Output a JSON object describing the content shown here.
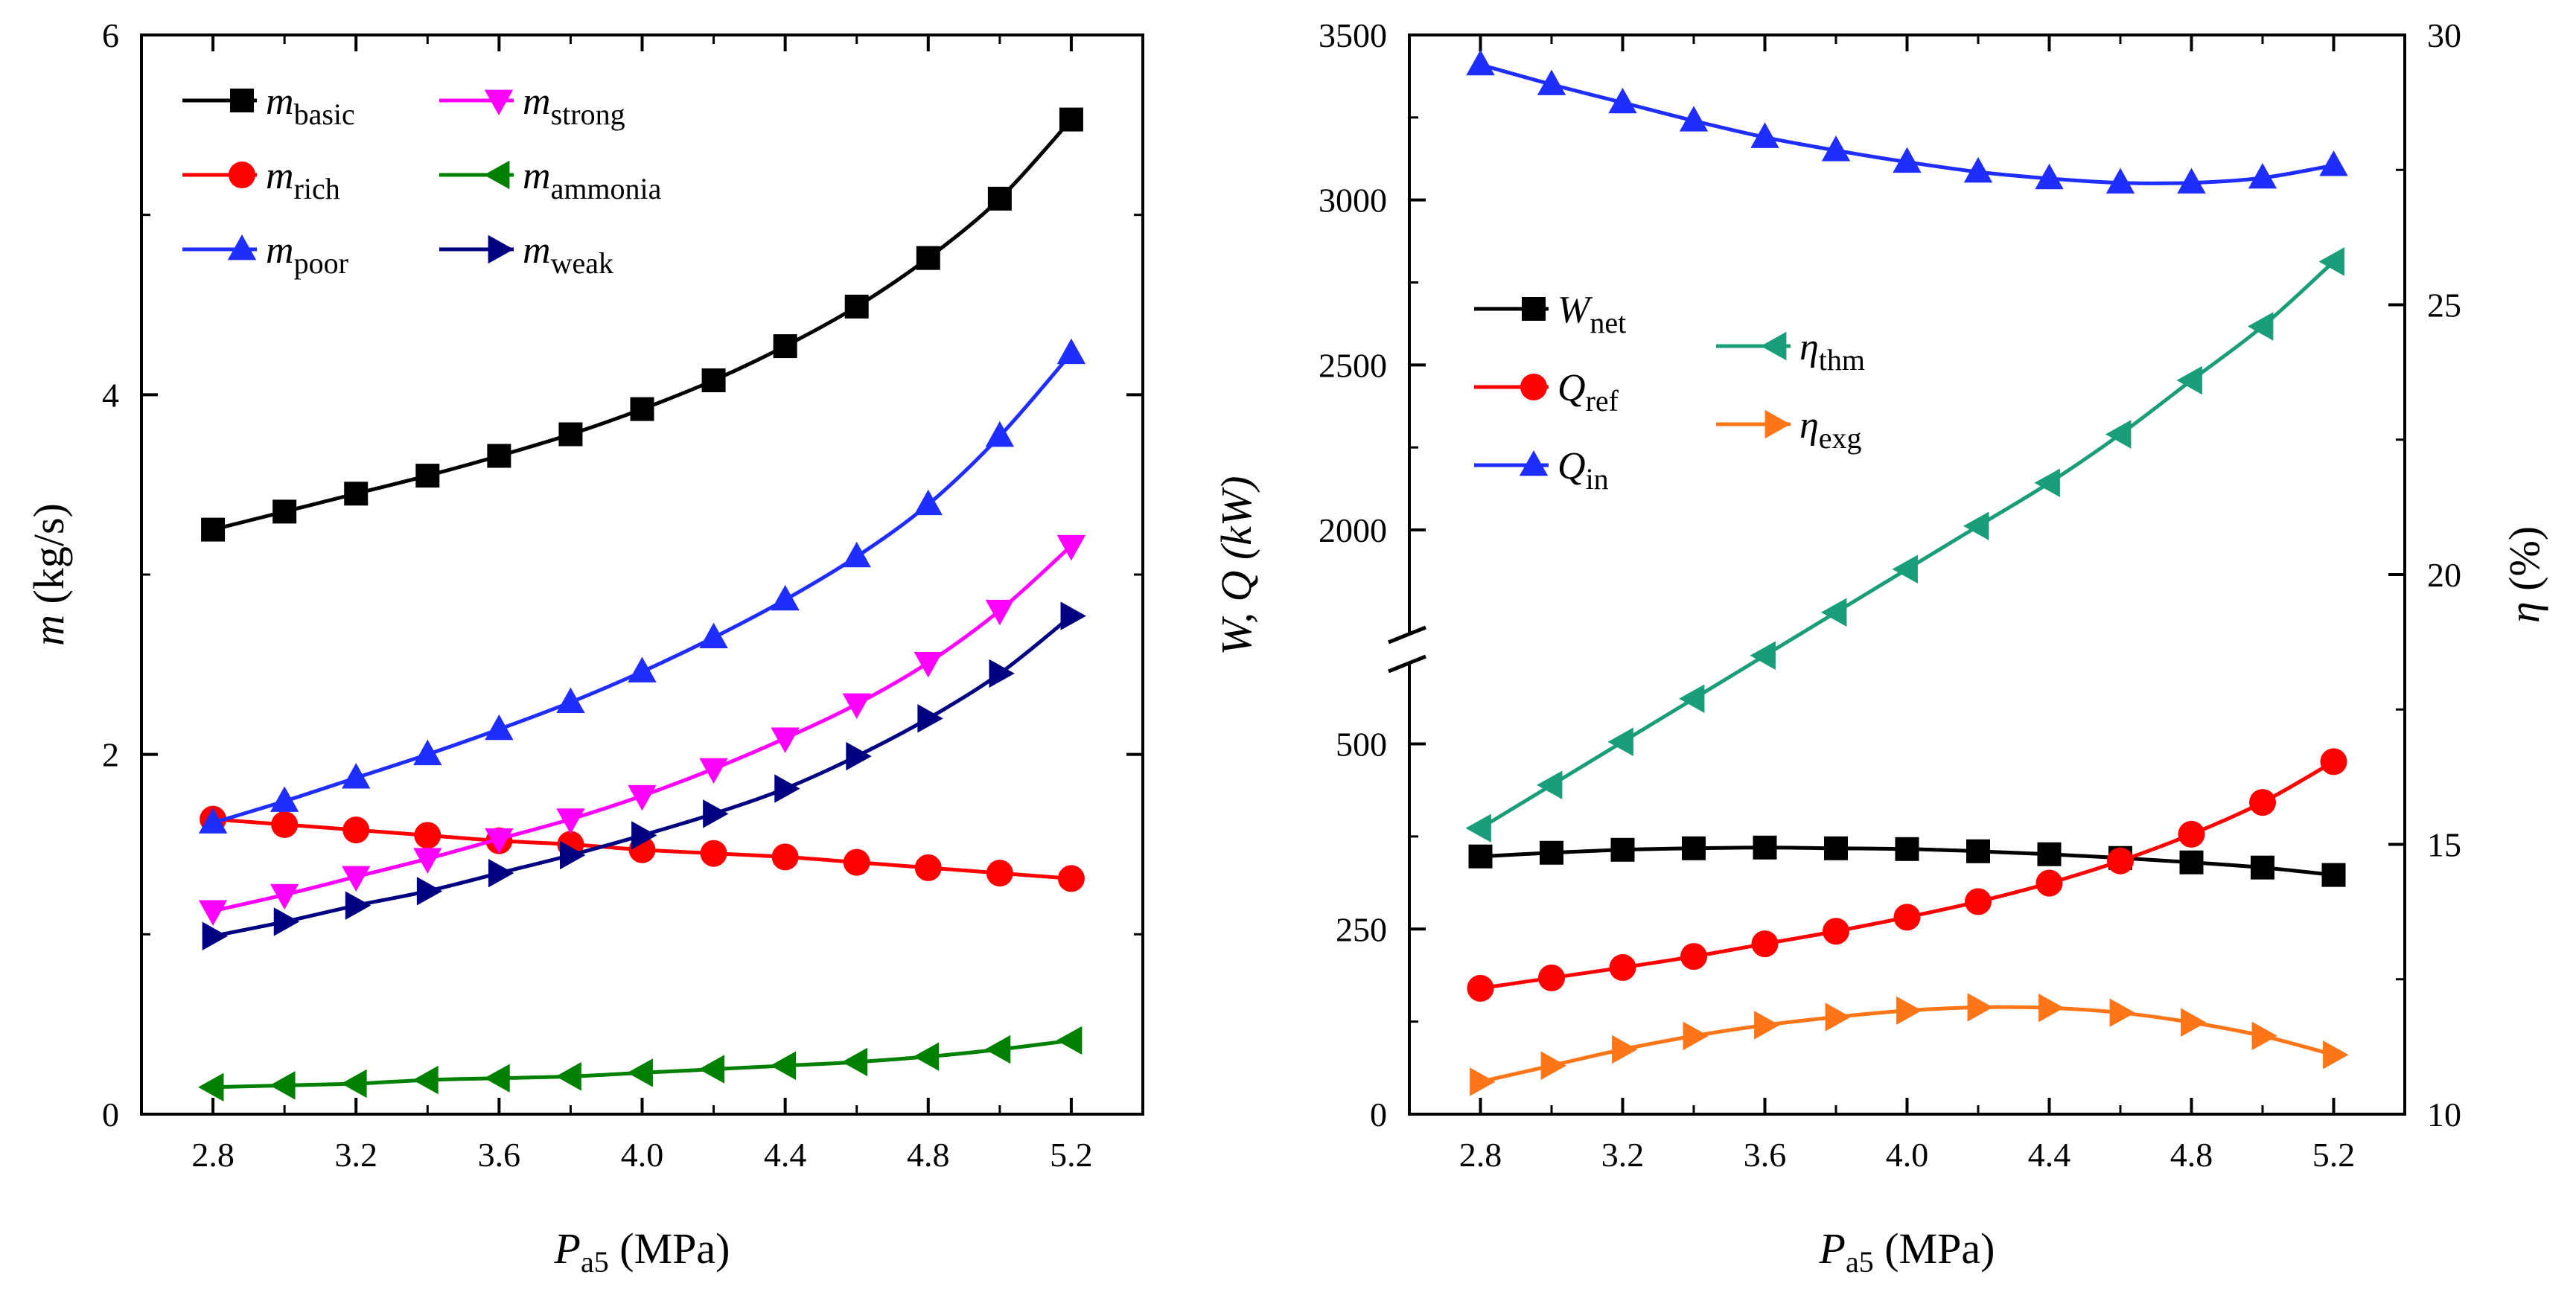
{
  "chart_data": [
    {
      "type": "line",
      "panel": "left",
      "xlabel": {
        "main": "P",
        "sub": "a5",
        "unit": " (MPa)"
      },
      "ylabel": {
        "main": "m",
        "unit": " (kg/s)"
      },
      "xlim": [
        2.6,
        5.4
      ],
      "ylim": [
        0,
        6
      ],
      "xticks": [
        "2.8",
        "3.2",
        "3.6",
        "4.0",
        "4.4",
        "4.8",
        "5.2"
      ],
      "yticks": [
        "0",
        "2",
        "4",
        "6"
      ],
      "x": [
        2.8,
        3.0,
        3.2,
        3.4,
        3.6,
        3.8,
        4.0,
        4.2,
        4.4,
        4.6,
        4.8,
        5.0,
        5.2
      ],
      "legend_position": "top-left",
      "series": [
        {
          "name": "m",
          "sub": "basic",
          "color": "#000000",
          "marker": "square",
          "values": [
            3.25,
            3.35,
            3.45,
            3.55,
            3.66,
            3.78,
            3.92,
            4.08,
            4.27,
            4.49,
            4.76,
            5.09,
            5.53
          ]
        },
        {
          "name": "m",
          "sub": "rich",
          "color": "#ff0000",
          "marker": "circle",
          "values": [
            1.64,
            1.61,
            1.58,
            1.55,
            1.52,
            1.5,
            1.47,
            1.45,
            1.43,
            1.4,
            1.37,
            1.34,
            1.31
          ]
        },
        {
          "name": "m",
          "sub": "poor",
          "color": "#1f2eff",
          "marker": "triangle-up",
          "values": [
            1.62,
            1.74,
            1.87,
            2.0,
            2.14,
            2.29,
            2.46,
            2.65,
            2.86,
            3.1,
            3.39,
            3.77,
            4.23
          ]
        },
        {
          "name": "m",
          "sub": "strong",
          "color": "#ff00ff",
          "marker": "triangle-down",
          "values": [
            1.13,
            1.22,
            1.32,
            1.42,
            1.53,
            1.64,
            1.77,
            1.92,
            2.09,
            2.28,
            2.51,
            2.8,
            3.16
          ]
        },
        {
          "name": "m",
          "sub": "ammonia",
          "color": "#008000",
          "marker": "triangle-left",
          "values": [
            0.15,
            0.16,
            0.17,
            0.19,
            0.2,
            0.21,
            0.23,
            0.25,
            0.27,
            0.29,
            0.32,
            0.36,
            0.41
          ]
        },
        {
          "name": "m",
          "sub": "weak",
          "color": "#000080",
          "marker": "triangle-right",
          "values": [
            0.99,
            1.07,
            1.16,
            1.24,
            1.34,
            1.44,
            1.55,
            1.67,
            1.81,
            1.99,
            2.2,
            2.45,
            2.77
          ]
        }
      ]
    },
    {
      "type": "line",
      "panel": "right",
      "xlabel": {
        "main": "P",
        "sub": "a5",
        "unit": " (MPa)"
      },
      "ylabel_left": {
        "text": "W, Q (kW)"
      },
      "ylabel_right": {
        "main": "η",
        "unit": " (%)"
      },
      "xlim": [
        2.6,
        5.4
      ],
      "y_left_break": {
        "lower_range": [
          0,
          600
        ],
        "upper_range": [
          1700,
          3500
        ]
      },
      "y_right_lim": [
        10,
        30
      ],
      "xticks": [
        "2.8",
        "3.2",
        "3.6",
        "4.0",
        "4.4",
        "4.8",
        "5.2"
      ],
      "yticks_left": [
        "0",
        "250",
        "500",
        "2000",
        "2500",
        "3000",
        "3500"
      ],
      "yticks_right": [
        "10",
        "15",
        "20",
        "25",
        "30"
      ],
      "x": [
        2.8,
        3.0,
        3.2,
        3.4,
        3.6,
        3.8,
        4.0,
        4.2,
        4.4,
        4.6,
        4.8,
        5.0,
        5.2
      ],
      "legend_position": "center-left",
      "series": [
        {
          "name": "W",
          "sub": "net",
          "axis": "left",
          "color": "#000000",
          "marker": "square",
          "values": [
            348,
            353,
            357,
            359,
            360,
            359,
            358,
            355,
            351,
            346,
            340,
            333,
            323
          ]
        },
        {
          "name": "Q",
          "sub": "ref",
          "axis": "left",
          "color": "#ff0000",
          "marker": "circle",
          "values": [
            170,
            184,
            198,
            213,
            230,
            247,
            266,
            287,
            312,
            342,
            378,
            421,
            476
          ]
        },
        {
          "name": "Q",
          "sub": "in",
          "axis": "left",
          "color": "#1f2eff",
          "marker": "triangle-up",
          "values": [
            3410,
            3350,
            3295,
            3240,
            3190,
            3150,
            3115,
            3085,
            3065,
            3052,
            3052,
            3067,
            3105
          ]
        },
        {
          "name": "η",
          "sub": "thm",
          "axis": "right",
          "color": "#1a9e7a",
          "marker": "triangle-left",
          "values": [
            15.3,
            16.1,
            16.9,
            17.7,
            18.5,
            19.3,
            20.1,
            20.9,
            21.7,
            22.6,
            23.6,
            24.6,
            25.8
          ]
        },
        {
          "name": "η",
          "sub": "exg",
          "axis": "right",
          "color": "#ff7518",
          "marker": "triangle-right",
          "values": [
            10.6,
            10.9,
            11.2,
            11.45,
            11.65,
            11.8,
            11.92,
            11.98,
            11.97,
            11.88,
            11.7,
            11.45,
            11.1
          ]
        }
      ]
    }
  ]
}
